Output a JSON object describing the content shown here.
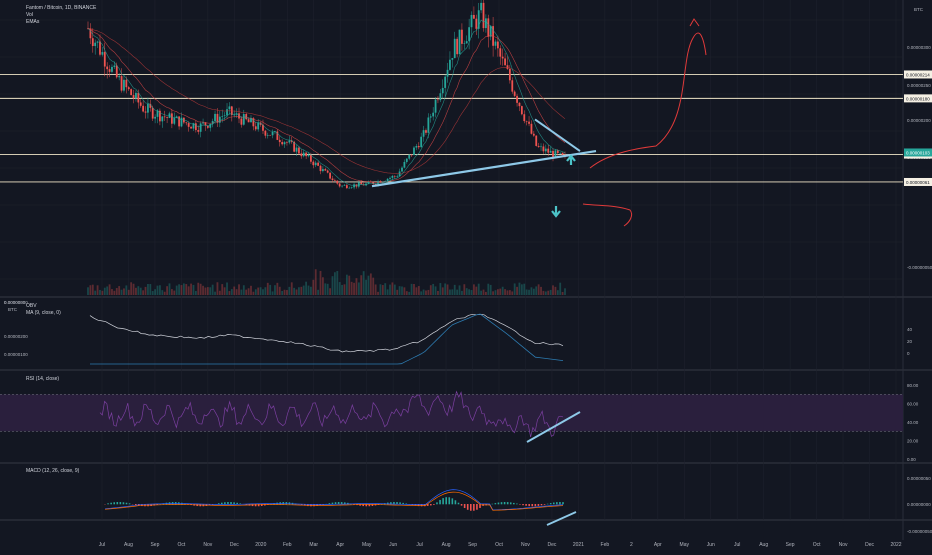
{
  "symbol_title": "Fantom / Bitcoin, 1D, BINANCE",
  "indicators_main": [
    "Vol",
    "EMAs"
  ],
  "currency": "BTC",
  "colors": {
    "background": "#131722",
    "grid": "#1e222d",
    "up": "#26a69a",
    "down": "#ef5350",
    "level_line": "#f0e6c8",
    "trendline": "#8ec9e8",
    "arrow": "#4cc3c8",
    "projection": "#e03a3a",
    "rsi_band": "#2a1f3d",
    "rsi_line": "#7b3fa0",
    "ma_line": "#2d7bb0"
  },
  "price_axis": {
    "ticks": [
      "0.00000300",
      "0.00000250",
      "0.00000200",
      "0.00000150",
      "-0.00000050"
    ],
    "levels": [
      {
        "label": "0.00000214",
        "value": 214
      },
      {
        "label": "0.00000180",
        "value": 180
      },
      {
        "label": "0.00000100",
        "value": 100
      },
      {
        "label": "0.00000061",
        "value": 61
      }
    ],
    "current_label": "0.00000103",
    "current_value": 103
  },
  "obv_pane": {
    "title": "OBV",
    "subtitle": "MA (9, close, 0)",
    "left_ticks": [
      "0.00000300",
      "0.00000200",
      "0.00000100"
    ],
    "right_ticks": [
      "40",
      "20",
      "0"
    ],
    "left_label_top": "0.0000000",
    "currency": "BTC"
  },
  "rsi_pane": {
    "title": "RSI (14, close)",
    "ticks": [
      "80.00",
      "60.00",
      "40.00",
      "20.00",
      "0.00"
    ]
  },
  "macd_pane": {
    "title": "MACD (12, 26, close, 9)",
    "ticks": [
      "0.00000050",
      "0.00000000",
      "-0.00000050"
    ]
  },
  "time_axis": [
    "Jul",
    "Aug",
    "Sep",
    "Oct",
    "Nov",
    "Dec",
    "2020",
    "Feb",
    "Mar",
    "Apr",
    "May",
    "Jun",
    "Jul",
    "Aug",
    "Sep",
    "Oct",
    "Nov",
    "Dec",
    "2021",
    "Feb",
    "2",
    "Apr",
    "May",
    "Jun",
    "Jul",
    "Aug",
    "Sep",
    "Oct",
    "Nov",
    "Dec",
    "2022"
  ],
  "chart_data": {
    "type": "line",
    "title": "Fantom / Bitcoin, 1D, BINANCE",
    "x": [
      "Jul",
      "Aug",
      "Sep",
      "Oct",
      "Nov",
      "Dec",
      "2020",
      "Feb",
      "Mar",
      "Apr",
      "May",
      "Jun",
      "Jul",
      "Aug",
      "Sep",
      "Oct",
      "Nov",
      "Dec"
    ],
    "series": [
      {
        "values": [
          280,
          210,
          165,
          150,
          140,
          160,
          140,
          120,
          90,
          55,
          58,
          70,
          130,
          250,
          300,
          210,
          110,
          95
        ]
      }
    ],
    "horizontal_levels": [
      214,
      180,
      100,
      61
    ],
    "current_price": 103,
    "ylim": [
      -60,
      320
    ]
  }
}
